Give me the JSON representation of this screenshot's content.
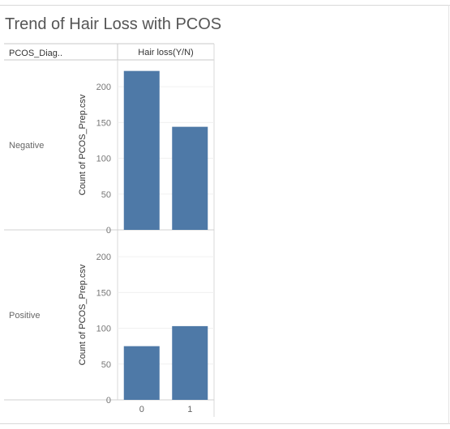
{
  "title": "Trend of Hair Loss with PCOS",
  "chart_data": {
    "type": "bar",
    "title": "Trend of Hair Loss with PCOS",
    "row_dimension": "PCOS_Diag..",
    "column_dimension": "Hair loss(Y/N)",
    "ylabel": "Count of PCOS_Prep.csv",
    "categories": [
      "0",
      "1"
    ],
    "panels": [
      {
        "row": "Negative",
        "values": [
          222,
          144
        ]
      },
      {
        "row": "Positive",
        "values": [
          75,
          103
        ]
      }
    ],
    "ylim": [
      0,
      225
    ],
    "yticks": [
      0,
      50,
      100,
      150,
      200
    ],
    "bar_color": "#4e79a7",
    "grid": true
  }
}
